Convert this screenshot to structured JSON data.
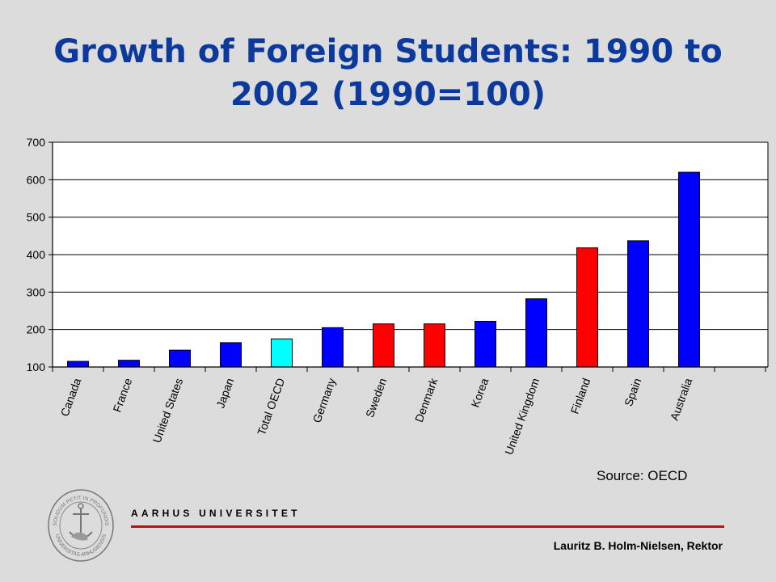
{
  "slide": {
    "title_line1": "Growth of Foreign Students: 1990 to",
    "title_line2": "2002 (1990=100)",
    "source": "Source: OECD",
    "university": "AARHUS UNIVERSITET",
    "footer_name": "Lauritz B. Holm-Nielsen, Rektor",
    "seal_text_top": "SOLIDUM PETIT IN PROFUNDIS",
    "seal_text_bottom": "UNIVERSITAS ARHUSIENSIS"
  },
  "colors": {
    "title": "#0b3a9c",
    "bar_default": "#0000ff",
    "bar_highlight": "#ff0000",
    "bar_oecd": "#00ffff",
    "rule": "#b01515"
  },
  "chart_data": {
    "type": "bar",
    "title": "",
    "xlabel": "",
    "ylabel": "",
    "categories": [
      "Canada",
      "France",
      "United States",
      "Japan",
      "Total OECD",
      "Germany",
      "Sweden",
      "Denmark",
      "Korea",
      "United Kingdom",
      "Finland",
      "Spain",
      "Australia"
    ],
    "values": [
      115,
      118,
      145,
      165,
      175,
      205,
      215,
      215,
      222,
      282,
      418,
      437,
      620
    ],
    "bar_colors": [
      "blue",
      "blue",
      "blue",
      "blue",
      "cyan",
      "blue",
      "red",
      "red",
      "blue",
      "blue",
      "red",
      "blue",
      "blue"
    ],
    "ylim": [
      100,
      700
    ],
    "yticks": [
      100,
      200,
      300,
      400,
      500,
      600,
      700
    ],
    "grid": true,
    "legend": "none"
  }
}
